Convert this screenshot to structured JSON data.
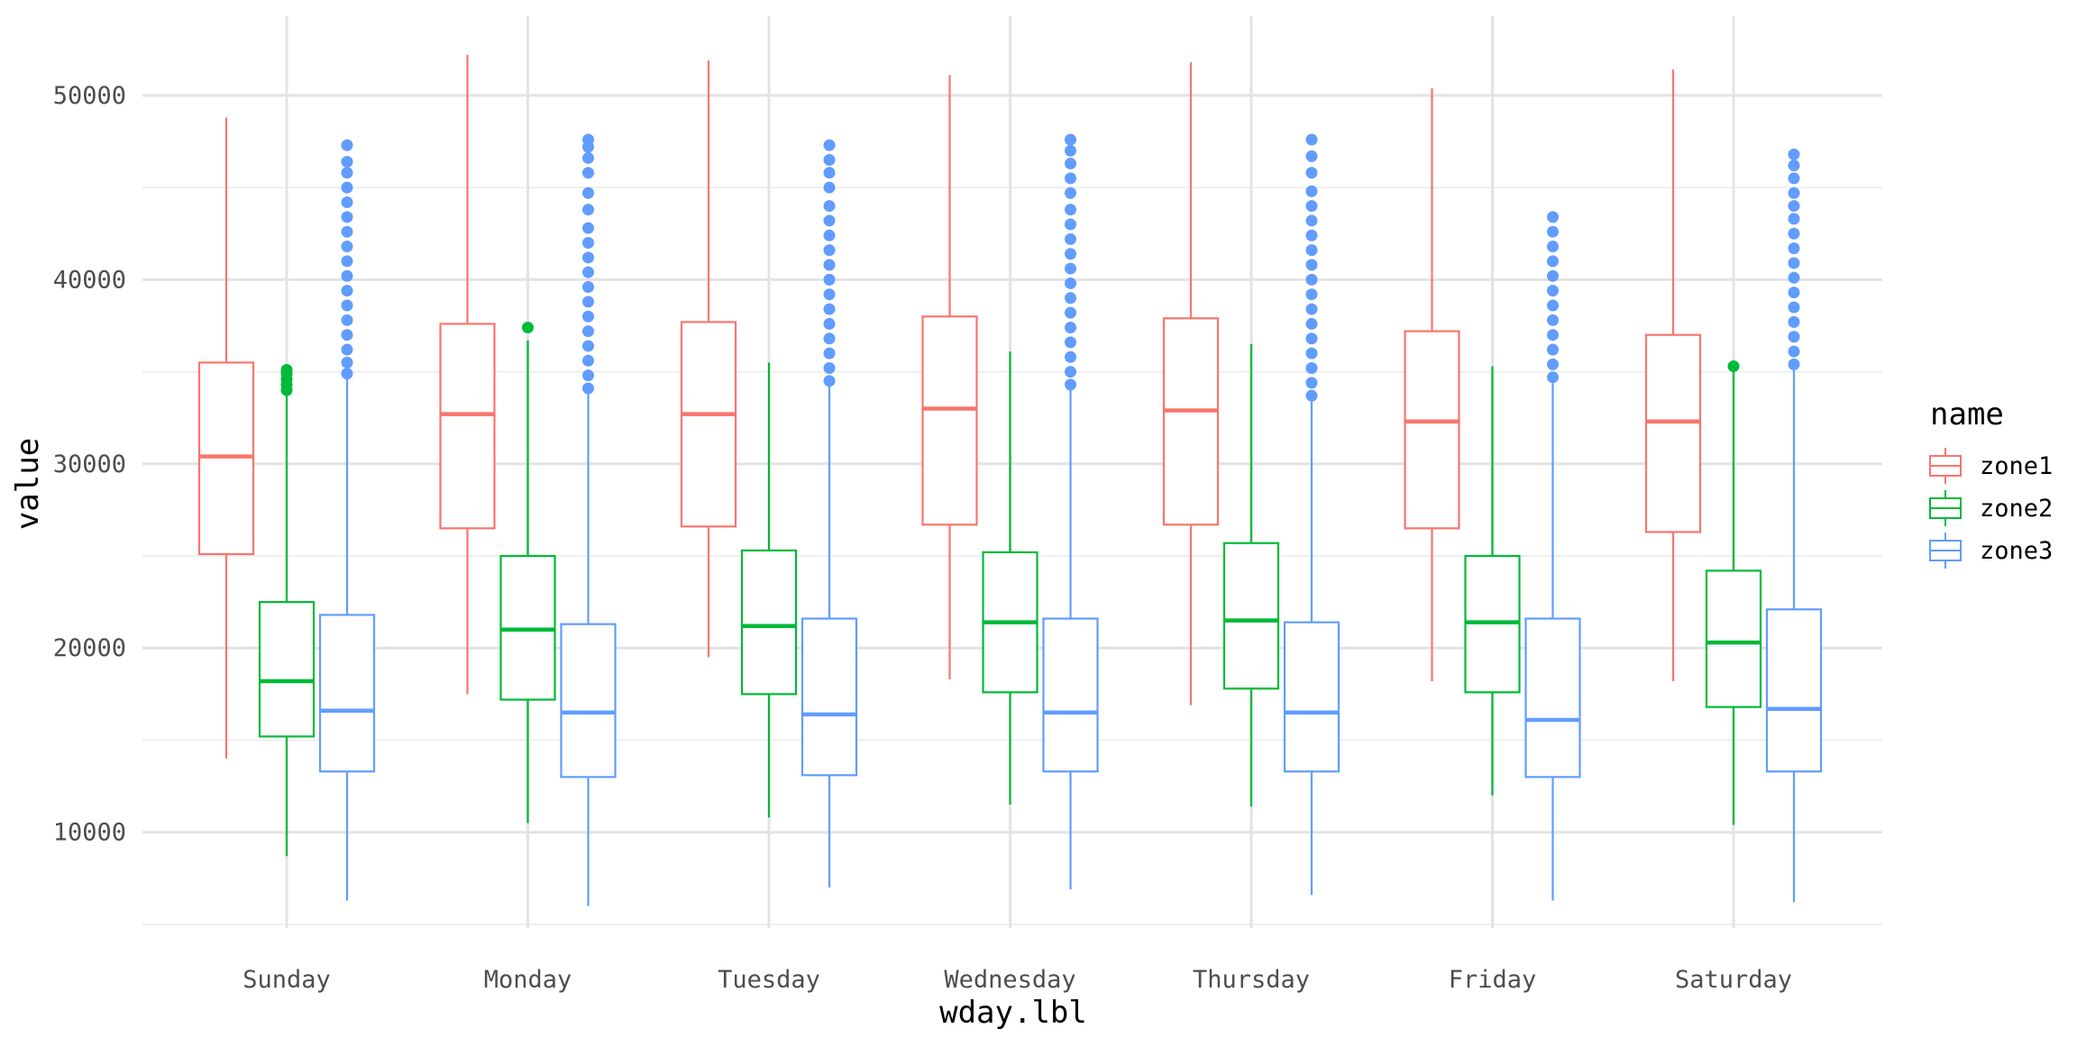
{
  "chart_data": {
    "type": "box",
    "xlabel": "wday.lbl",
    "ylabel": "value",
    "categories": [
      "Sunday",
      "Monday",
      "Tuesday",
      "Wednesday",
      "Thursday",
      "Friday",
      "Saturday"
    ],
    "ylim": [
      4800,
      54300
    ],
    "yticks": [
      10000,
      20000,
      30000,
      40000,
      50000
    ],
    "grid": true,
    "legend": {
      "title": "name",
      "position": "right"
    },
    "series": [
      {
        "name": "zone1",
        "color": "#F8766D",
        "boxes": [
          {
            "whisker_low": 14000,
            "q1": 25100,
            "median": 30400,
            "q3": 35500,
            "whisker_high": 48800,
            "outliers": []
          },
          {
            "whisker_low": 17500,
            "q1": 26500,
            "median": 32700,
            "q3": 37600,
            "whisker_high": 52200,
            "outliers": []
          },
          {
            "whisker_low": 19500,
            "q1": 26600,
            "median": 32700,
            "q3": 37700,
            "whisker_high": 51900,
            "outliers": []
          },
          {
            "whisker_low": 18300,
            "q1": 26700,
            "median": 33000,
            "q3": 38000,
            "whisker_high": 51100,
            "outliers": []
          },
          {
            "whisker_low": 16900,
            "q1": 26700,
            "median": 32900,
            "q3": 37900,
            "whisker_high": 51800,
            "outliers": []
          },
          {
            "whisker_low": 18200,
            "q1": 26500,
            "median": 32300,
            "q3": 37200,
            "whisker_high": 50400,
            "outliers": []
          },
          {
            "whisker_low": 18200,
            "q1": 26300,
            "median": 32300,
            "q3": 37000,
            "whisker_high": 51400,
            "outliers": []
          }
        ]
      },
      {
        "name": "zone2",
        "color": "#00BA38",
        "boxes": [
          {
            "whisker_low": 8700,
            "q1": 15200,
            "median": 18200,
            "q3": 22500,
            "whisker_high": 33800,
            "outliers": [
              34000,
              34300,
              34600,
              34900,
              35100
            ]
          },
          {
            "whisker_low": 10500,
            "q1": 17200,
            "median": 21000,
            "q3": 25000,
            "whisker_high": 36700,
            "outliers": [
              37400
            ]
          },
          {
            "whisker_low": 10800,
            "q1": 17500,
            "median": 21200,
            "q3": 25300,
            "whisker_high": 35500,
            "outliers": []
          },
          {
            "whisker_low": 11500,
            "q1": 17600,
            "median": 21400,
            "q3": 25200,
            "whisker_high": 36100,
            "outliers": []
          },
          {
            "whisker_low": 11400,
            "q1": 17800,
            "median": 21500,
            "q3": 25700,
            "whisker_high": 36500,
            "outliers": []
          },
          {
            "whisker_low": 12000,
            "q1": 17600,
            "median": 21400,
            "q3": 25000,
            "whisker_high": 35300,
            "outliers": []
          },
          {
            "whisker_low": 10400,
            "q1": 16800,
            "median": 20300,
            "q3": 24200,
            "whisker_high": 35300,
            "outliers": [
              35300
            ]
          }
        ]
      },
      {
        "name": "zone3",
        "color": "#619CFF",
        "boxes": [
          {
            "whisker_low": 6300,
            "q1": 13300,
            "median": 16600,
            "q3": 21800,
            "whisker_high": 34700,
            "outliers": [
              34900,
              35500,
              36200,
              37000,
              37800,
              38600,
              39400,
              40200,
              41000,
              41800,
              42600,
              43400,
              44200,
              45000,
              45800,
              46400,
              47300
            ]
          },
          {
            "whisker_low": 6000,
            "q1": 13000,
            "median": 16500,
            "q3": 21300,
            "whisker_high": 33900,
            "outliers": [
              34100,
              34800,
              35600,
              36400,
              37200,
              38000,
              38800,
              39600,
              40400,
              41200,
              42000,
              42800,
              43800,
              44700,
              45800,
              46600,
              47200,
              47600
            ]
          },
          {
            "whisker_low": 7000,
            "q1": 13100,
            "median": 16400,
            "q3": 21600,
            "whisker_high": 34300,
            "outliers": [
              34500,
              35200,
              36000,
              36800,
              37600,
              38400,
              39200,
              40000,
              40800,
              41600,
              42400,
              43200,
              44000,
              45000,
              45800,
              46500,
              47300
            ]
          },
          {
            "whisker_low": 6900,
            "q1": 13300,
            "median": 16500,
            "q3": 21600,
            "whisker_high": 34100,
            "outliers": [
              34300,
              35000,
              35800,
              36600,
              37400,
              38200,
              39000,
              39800,
              40600,
              41400,
              42200,
              43000,
              43800,
              44700,
              45500,
              46300,
              47000,
              47600
            ]
          },
          {
            "whisker_low": 6600,
            "q1": 13300,
            "median": 16500,
            "q3": 21400,
            "whisker_high": 33500,
            "outliers": [
              33700,
              34400,
              35200,
              36000,
              36800,
              37600,
              38400,
              39200,
              40000,
              40800,
              41600,
              42400,
              43200,
              44000,
              44800,
              45800,
              46700,
              47600
            ]
          },
          {
            "whisker_low": 6300,
            "q1": 13000,
            "median": 16100,
            "q3": 21600,
            "whisker_high": 34500,
            "outliers": [
              34700,
              35400,
              36200,
              37000,
              37800,
              38600,
              39400,
              40200,
              41000,
              41800,
              42600,
              43400
            ]
          },
          {
            "whisker_low": 6200,
            "q1": 13300,
            "median": 16700,
            "q3": 22100,
            "whisker_high": 35200,
            "outliers": [
              35400,
              36100,
              36900,
              37700,
              38500,
              39300,
              40100,
              40900,
              41700,
              42500,
              43300,
              44000,
              44700,
              45500,
              46200,
              46800
            ]
          }
        ]
      }
    ]
  }
}
